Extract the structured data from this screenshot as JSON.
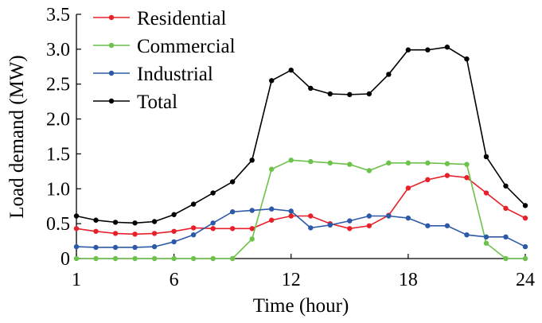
{
  "chart_data": {
    "type": "line",
    "title": "",
    "xlabel": "Time (hour)",
    "ylabel": "Load demand (MW)",
    "x": [
      1,
      2,
      3,
      4,
      5,
      6,
      7,
      8,
      9,
      10,
      11,
      12,
      13,
      14,
      15,
      16,
      17,
      18,
      19,
      20,
      21,
      22,
      23,
      24
    ],
    "xlim": [
      1,
      24
    ],
    "ylim": [
      0,
      3.5
    ],
    "xticks": [
      "1",
      "6",
      "12",
      "18",
      "24"
    ],
    "yticks": [
      "0",
      "0.5",
      "1.0",
      "1.5",
      "2.0",
      "2.5",
      "3.0",
      "3.5"
    ],
    "grid": false,
    "legend_position": "top-left",
    "series": [
      {
        "name": "Residential",
        "color": "#e8202a",
        "values": [
          0.43,
          0.39,
          0.36,
          0.35,
          0.36,
          0.39,
          0.44,
          0.43,
          0.43,
          0.43,
          0.55,
          0.61,
          0.61,
          0.5,
          0.43,
          0.47,
          0.62,
          1.01,
          1.13,
          1.19,
          1.16,
          0.94,
          0.72,
          0.58
        ]
      },
      {
        "name": "Commercial",
        "color": "#6cc24a",
        "values": [
          0,
          0,
          0,
          0,
          0,
          0,
          0,
          0,
          0,
          0.28,
          1.28,
          1.41,
          1.39,
          1.37,
          1.35,
          1.26,
          1.37,
          1.37,
          1.37,
          1.36,
          1.35,
          0.22,
          0,
          0
        ]
      },
      {
        "name": "Industrial",
        "color": "#2c5aa8",
        "values": [
          0.17,
          0.16,
          0.16,
          0.16,
          0.17,
          0.24,
          0.34,
          0.51,
          0.67,
          0.69,
          0.71,
          0.68,
          0.44,
          0.48,
          0.54,
          0.61,
          0.61,
          0.58,
          0.47,
          0.47,
          0.34,
          0.31,
          0.31,
          0.17
        ]
      },
      {
        "name": "Total",
        "color": "#000000",
        "values": [
          0.61,
          0.55,
          0.52,
          0.51,
          0.53,
          0.63,
          0.78,
          0.94,
          1.1,
          1.41,
          2.55,
          2.7,
          2.44,
          2.36,
          2.35,
          2.36,
          2.64,
          2.99,
          2.99,
          3.03,
          2.86,
          1.46,
          1.04,
          0.76
        ]
      }
    ]
  }
}
